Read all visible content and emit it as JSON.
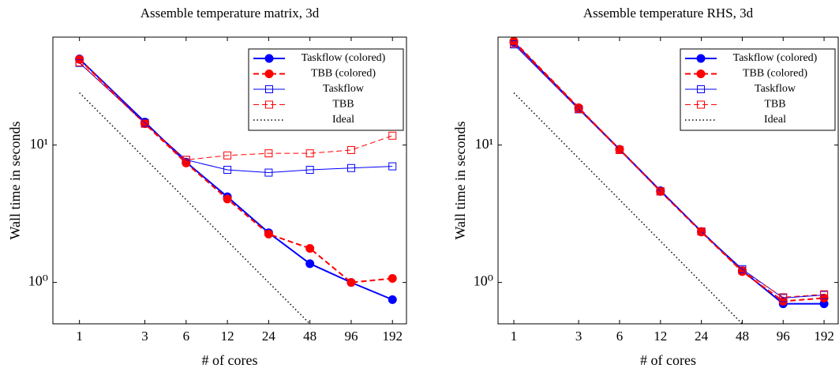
{
  "chart_data": [
    {
      "type": "line",
      "title": "Assemble temperature matrix, 3d",
      "x_label": "# of cores",
      "y_label": "Wall time in seconds",
      "x": [
        1,
        3,
        6,
        12,
        24,
        48,
        96,
        192
      ],
      "xscale": "log",
      "yscale": "log",
      "xlim": [
        0.64,
        243
      ],
      "ylim": [
        0.5,
        61
      ],
      "xticks": [
        1,
        3,
        6,
        12,
        24,
        48,
        96,
        192
      ],
      "yticks": [
        {
          "value": 1,
          "label": "10⁰"
        },
        {
          "value": 10,
          "label": "10¹"
        }
      ],
      "legend": "upper right",
      "series": [
        {
          "name": "Taskflow (colored)",
          "color": "#0000ff",
          "linestyle": "solid",
          "marker": "circle",
          "linewidth": 2,
          "values": [
            42.3,
            14.7,
            7.5,
            4.2,
            2.3,
            1.37,
            1.0,
            0.75
          ]
        },
        {
          "name": "TBB (colored)",
          "color": "#ff0000",
          "linestyle": "dashed",
          "marker": "circle",
          "linewidth": 2,
          "values": [
            42,
            14.3,
            7.4,
            4.05,
            2.25,
            1.77,
            1.0,
            1.07
          ]
        },
        {
          "name": "Taskflow",
          "color": "#0000ff",
          "linestyle": "solid",
          "marker": "square",
          "linewidth": 1,
          "values": [
            39.6,
            14.5,
            7.8,
            6.6,
            6.3,
            6.6,
            6.8,
            7.0
          ]
        },
        {
          "name": "TBB",
          "color": "#ff0000",
          "linestyle": "dashed",
          "marker": "square",
          "linewidth": 1,
          "values": [
            40,
            14.3,
            7.8,
            8.4,
            8.7,
            8.7,
            9.2,
            11.7
          ]
        },
        {
          "name": "Ideal",
          "color": "#000000",
          "linestyle": "dotted",
          "marker": "none",
          "linewidth": 1.5,
          "values": [
            24,
            8,
            4,
            2,
            1,
            0.5,
            null,
            null
          ]
        }
      ]
    },
    {
      "type": "line",
      "title": "Assemble temperature RHS, 3d",
      "x_label": "# of cores",
      "y_label": "Wall time in seconds",
      "x": [
        1,
        3,
        6,
        12,
        24,
        48,
        96,
        192
      ],
      "xscale": "log",
      "yscale": "log",
      "xlim": [
        0.765,
        244
      ],
      "ylim": [
        0.5,
        61
      ],
      "xticks": [
        1,
        3,
        6,
        12,
        24,
        48,
        96,
        192
      ],
      "yticks": [
        {
          "value": 1,
          "label": "10⁰"
        },
        {
          "value": 10,
          "label": "10¹"
        }
      ],
      "legend": "upper right",
      "series": [
        {
          "name": "Taskflow (colored)",
          "color": "#0000ff",
          "linestyle": "solid",
          "marker": "circle",
          "linewidth": 2,
          "values": [
            56,
            18.5,
            9.3,
            4.65,
            2.35,
            1.22,
            0.7,
            0.7
          ]
        },
        {
          "name": "TBB (colored)",
          "color": "#ff0000",
          "linestyle": "dashed",
          "marker": "circle",
          "linewidth": 2,
          "values": [
            57,
            18.7,
            9.3,
            4.6,
            2.33,
            1.2,
            0.73,
            0.77
          ]
        },
        {
          "name": "Taskflow",
          "color": "#0000ff",
          "linestyle": "solid",
          "marker": "square",
          "linewidth": 1,
          "values": [
            54,
            18.2,
            9.2,
            4.6,
            2.35,
            1.25,
            0.77,
            0.81
          ]
        },
        {
          "name": "TBB",
          "color": "#ff0000",
          "linestyle": "dashed",
          "marker": "square",
          "linewidth": 1,
          "values": [
            55,
            18.3,
            9.2,
            4.6,
            2.35,
            1.22,
            0.78,
            0.82
          ]
        },
        {
          "name": "Ideal",
          "color": "#000000",
          "linestyle": "dotted",
          "marker": "none",
          "linewidth": 1.5,
          "values": [
            24,
            8,
            4,
            2,
            1,
            0.5,
            null,
            null
          ]
        }
      ]
    }
  ]
}
